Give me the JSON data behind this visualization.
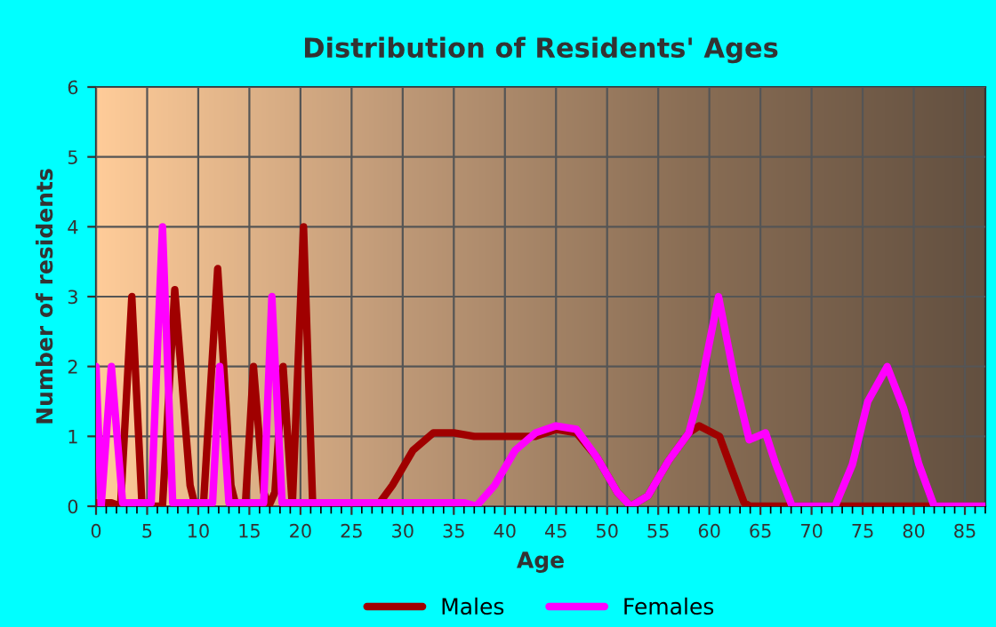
{
  "chart_data": {
    "type": "line",
    "title": "Distribution of Residents' Ages",
    "xlabel": "Age",
    "ylabel": "Number of residents",
    "xlim": [
      0,
      87
    ],
    "xticks": [
      0,
      5,
      10,
      15,
      20,
      25,
      30,
      35,
      40,
      45,
      50,
      55,
      60,
      65,
      70,
      75,
      80,
      85
    ],
    "ylim": [
      0,
      6
    ],
    "yticks": [
      0,
      1,
      2,
      3,
      4,
      5,
      6
    ],
    "grid": true,
    "legend": "bottom",
    "marker": "none",
    "line_style": "solid",
    "series": [
      {
        "name": "Males",
        "color": "#a00000",
        "x": [
          0,
          1.5,
          2.4,
          3.5,
          4.5,
          5.5,
          6.5,
          7.7,
          9.2,
          9.7,
          10.5,
          11.9,
          13.2,
          13.7,
          14.6,
          15.4,
          16.4,
          16.9,
          17.5,
          18.3,
          19.2,
          20.3,
          21.2,
          22,
          27.5,
          29,
          31,
          33,
          35,
          37,
          40,
          43,
          45,
          47,
          49,
          51,
          52.3,
          54,
          56,
          58,
          59,
          61,
          62,
          63.4,
          64,
          87
        ],
        "values": [
          0.05,
          0.05,
          0,
          3,
          0,
          0,
          0,
          3.1,
          0.3,
          0,
          0,
          3.4,
          0.3,
          0,
          0,
          2,
          0.2,
          0,
          0.2,
          2,
          0,
          4,
          0,
          0,
          0,
          0.3,
          0.8,
          1.05,
          1.05,
          1.0,
          1.0,
          1.0,
          1.1,
          1.05,
          0.7,
          0.2,
          0,
          0.15,
          0.65,
          1.05,
          1.15,
          1.0,
          0.6,
          0.05,
          0,
          0
        ]
      },
      {
        "name": "Females",
        "color": "#ff00ff",
        "x": [
          0,
          0.5,
          1.5,
          2.6,
          5.4,
          6.5,
          7.5,
          11.4,
          12.1,
          13,
          16.4,
          17.2,
          18.2,
          30,
          36,
          37.2,
          39,
          41,
          43,
          45,
          47,
          49,
          51,
          52.3,
          54,
          56,
          58,
          59,
          60.9,
          62.5,
          63.9,
          65.5,
          66.5,
          68.1,
          72.3,
          74,
          75.5,
          77.4,
          79,
          80.5,
          82,
          87
        ],
        "values": [
          2,
          0,
          2,
          0.05,
          0.05,
          4,
          0.05,
          0.05,
          2,
          0.05,
          0.05,
          3,
          0.05,
          0.05,
          0.05,
          0,
          0.3,
          0.8,
          1.05,
          1.15,
          1.1,
          0.7,
          0.2,
          0,
          0.15,
          0.65,
          1.05,
          1.6,
          3,
          1.8,
          0.95,
          1.05,
          0.6,
          0,
          0,
          0.6,
          1.5,
          2,
          1.4,
          0.6,
          0,
          0
        ]
      }
    ]
  }
}
